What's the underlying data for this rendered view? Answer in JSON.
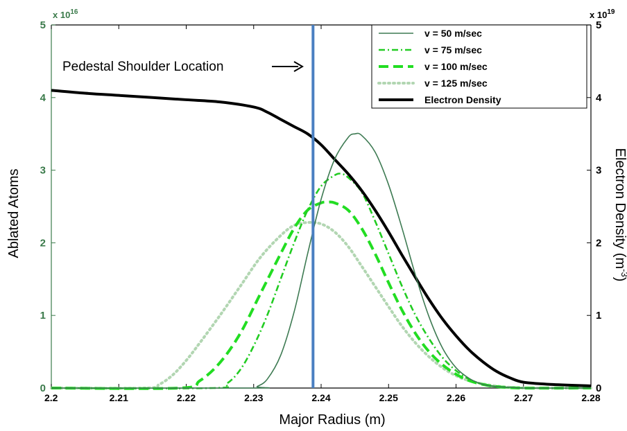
{
  "chart_data": {
    "type": "line",
    "xlabel": "Major Radius (m)",
    "ylabel_left": "Ablated Atoms",
    "ylabel_right_main": "Electron Density (m",
    "ylabel_right_sup": "-3",
    "ylabel_right_close": ")",
    "left_axis_color": "#3a7a4a",
    "left_exponent_base": "x 10",
    "left_exponent_power": "16",
    "right_exponent_base": "x 10",
    "right_exponent_power": "19",
    "xlim": [
      2.2,
      2.28
    ],
    "ylim_left": [
      0,
      5
    ],
    "ylim_right": [
      0,
      5
    ],
    "x_ticks": [
      "2.2",
      "2.21",
      "2.22",
      "2.23",
      "2.24",
      "2.25",
      "2.26",
      "2.27",
      "2.28"
    ],
    "y_ticks_left": [
      "0",
      "1",
      "2",
      "3",
      "4",
      "5"
    ],
    "y_ticks_right": [
      "0",
      "1",
      "2",
      "3",
      "4",
      "5"
    ],
    "series": [
      {
        "name": "v = 50 m/sec",
        "axis": "left",
        "color": "#3d7a52",
        "style": "solid",
        "x": [
          2.2,
          2.23,
          2.2305,
          2.232,
          2.234,
          2.236,
          2.238,
          2.24,
          2.242,
          2.244,
          2.245,
          2.246,
          2.248,
          2.25,
          2.252,
          2.254,
          2.256,
          2.258,
          2.26,
          2.262,
          2.264,
          2.266,
          2.268,
          2.27,
          2.275,
          2.28
        ],
        "y": [
          0,
          0,
          0.02,
          0.12,
          0.45,
          1.05,
          1.85,
          2.6,
          3.15,
          3.45,
          3.5,
          3.48,
          3.25,
          2.8,
          2.2,
          1.55,
          0.98,
          0.55,
          0.28,
          0.13,
          0.05,
          0.02,
          0.01,
          0,
          0,
          0
        ]
      },
      {
        "name": "v = 75 m/sec",
        "axis": "left",
        "color": "#22cc22",
        "style": "dashdot",
        "x": [
          2.2,
          2.224,
          2.226,
          2.228,
          2.23,
          2.232,
          2.234,
          2.236,
          2.238,
          2.24,
          2.242,
          2.243,
          2.244,
          2.246,
          2.248,
          2.25,
          2.252,
          2.254,
          2.256,
          2.258,
          2.26,
          2.262,
          2.264,
          2.266,
          2.27,
          2.28
        ],
        "y": [
          0,
          0,
          0.06,
          0.25,
          0.58,
          1.0,
          1.5,
          2.0,
          2.45,
          2.78,
          2.93,
          2.95,
          2.9,
          2.7,
          2.3,
          1.85,
          1.4,
          1.0,
          0.68,
          0.42,
          0.24,
          0.12,
          0.05,
          0.02,
          0,
          0
        ]
      },
      {
        "name": "v = 100 m/sec",
        "axis": "left",
        "color": "#22dd22",
        "style": "dashed",
        "x": [
          2.2,
          2.219,
          2.222,
          2.225,
          2.228,
          2.231,
          2.234,
          2.236,
          2.238,
          2.24,
          2.241,
          2.242,
          2.244,
          2.246,
          2.248,
          2.25,
          2.252,
          2.254,
          2.256,
          2.258,
          2.26,
          2.262,
          2.264,
          2.266,
          2.27,
          2.28
        ],
        "y": [
          0,
          0,
          0.1,
          0.35,
          0.75,
          1.3,
          1.85,
          2.2,
          2.45,
          2.55,
          2.56,
          2.55,
          2.45,
          2.2,
          1.85,
          1.45,
          1.07,
          0.75,
          0.5,
          0.32,
          0.19,
          0.1,
          0.05,
          0.02,
          0,
          0
        ]
      },
      {
        "name": "v = 125 m/sec",
        "axis": "left",
        "color": "#b2d6b2",
        "style": "dotted",
        "x": [
          2.2,
          2.214,
          2.216,
          2.218,
          2.22,
          2.222,
          2.225,
          2.228,
          2.231,
          2.234,
          2.236,
          2.238,
          2.24,
          2.242,
          2.244,
          2.246,
          2.248,
          2.25,
          2.252,
          2.254,
          2.256,
          2.258,
          2.26,
          2.262,
          2.265,
          2.268,
          2.272,
          2.28
        ],
        "y": [
          0,
          0,
          0.05,
          0.18,
          0.38,
          0.62,
          1.0,
          1.4,
          1.8,
          2.1,
          2.24,
          2.28,
          2.26,
          2.15,
          1.95,
          1.68,
          1.4,
          1.12,
          0.85,
          0.62,
          0.43,
          0.28,
          0.17,
          0.1,
          0.04,
          0.01,
          0,
          0
        ]
      },
      {
        "name": "Electron Density",
        "axis": "right",
        "color": "#000000",
        "style": "solid-thick",
        "x": [
          2.2,
          2.205,
          2.21,
          2.215,
          2.22,
          2.225,
          2.23,
          2.232,
          2.234,
          2.236,
          2.238,
          2.24,
          2.242,
          2.244,
          2.246,
          2.248,
          2.25,
          2.252,
          2.254,
          2.256,
          2.258,
          2.26,
          2.262,
          2.264,
          2.266,
          2.268,
          2.27,
          2.274,
          2.28
        ],
        "y": [
          4.1,
          4.06,
          4.03,
          4.0,
          3.97,
          3.94,
          3.87,
          3.8,
          3.7,
          3.6,
          3.5,
          3.35,
          3.15,
          2.95,
          2.72,
          2.45,
          2.15,
          1.83,
          1.52,
          1.22,
          0.95,
          0.72,
          0.52,
          0.36,
          0.23,
          0.14,
          0.08,
          0.05,
          0.03
        ]
      }
    ],
    "marker_line": {
      "x": 2.2388,
      "color": "#4a7fc1"
    },
    "annotation": {
      "text": "Pedestal Shoulder Location"
    },
    "legend": {
      "placement": "top-right"
    }
  }
}
